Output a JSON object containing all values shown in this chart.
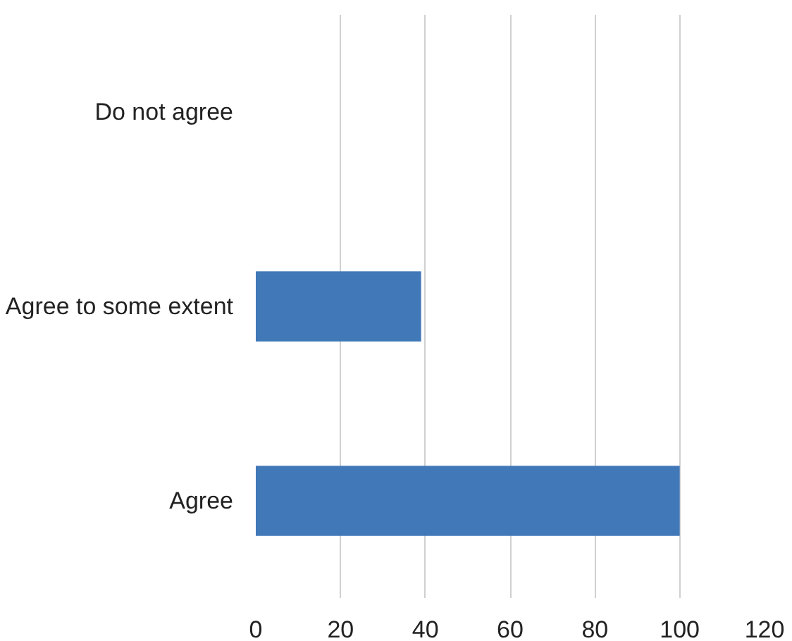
{
  "chart_data": {
    "type": "bar",
    "orientation": "horizontal",
    "categories": [
      "Do not agree",
      "Agree to some extent",
      "Agree"
    ],
    "values": [
      0,
      39,
      100
    ],
    "color": "#4178b8",
    "xlim": [
      0,
      120
    ],
    "xticks": [
      0,
      20,
      40,
      60,
      80,
      100,
      120
    ],
    "grid": "x"
  }
}
